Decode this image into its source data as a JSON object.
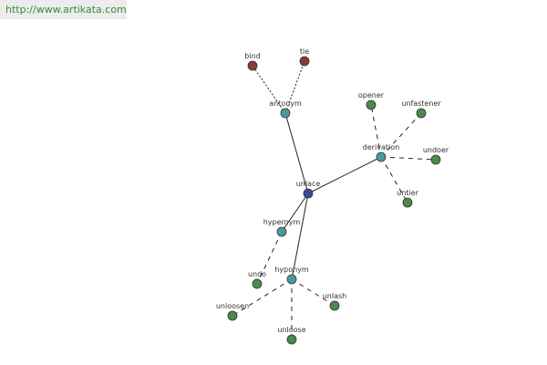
{
  "header": {
    "url": "http://www.artikata.com"
  },
  "nodes": [
    {
      "label": "unlace"
    },
    {
      "label": "antonym"
    },
    {
      "label": "bind"
    },
    {
      "label": "tie"
    },
    {
      "label": "derivation"
    },
    {
      "label": "opener"
    },
    {
      "label": "unfastener"
    },
    {
      "label": "undoer"
    },
    {
      "label": "untier"
    },
    {
      "label": "hypernym"
    },
    {
      "label": "undo"
    },
    {
      "label": "hyponym"
    },
    {
      "label": "unloosen"
    },
    {
      "label": "unloose"
    },
    {
      "label": "unlash"
    }
  ]
}
